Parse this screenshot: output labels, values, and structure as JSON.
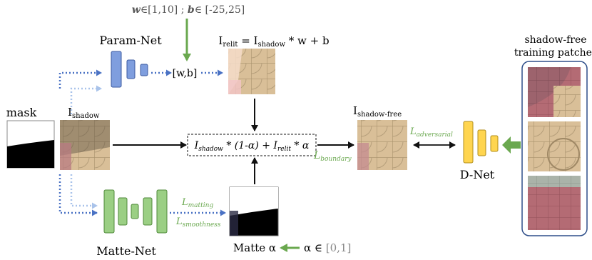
{
  "diagram": {
    "params_range": {
      "w": "w",
      "w_range": "∈[1,10] ; ",
      "b": "b",
      "b_range": "∈ [-25,25]"
    },
    "param_net": "Param-Net",
    "wb": "[w,b]",
    "relit_eq": {
      "I": "I",
      "relit": "relit",
      "eq": " = I",
      "shadow": "shadow",
      "tail": " * w + b"
    },
    "mask": "mask",
    "ishadow": {
      "I": "I",
      "sub": "shadow"
    },
    "composite": {
      "p1": "I",
      "s1": "shadow",
      "p2": " * (1-α) + ",
      "p3": "I",
      "s2": "relit",
      "p4": " * α"
    },
    "l_boundary": {
      "L": "L",
      "sub": "boundary"
    },
    "ishadowfree": {
      "I": "I",
      "sub": "shadow-free"
    },
    "l_adversarial": {
      "L": "L",
      "sub": "adversarial"
    },
    "dnet": "D-Net",
    "patches_title": [
      "shadow-free",
      "training patches"
    ],
    "l_matting": {
      "L": "L",
      "sub": "matting"
    },
    "l_smoothness": {
      "L": "L",
      "sub": "smoothness"
    },
    "matte_net": "Matte-Net",
    "matte_alpha": "Matte α",
    "alpha_range": {
      "a": "α ∈ ",
      "b": "[0,1]"
    },
    "colors": {
      "param_net_fill": "#7f9ede",
      "matte_net_fill": "#9bcf84",
      "dnet_fill": "#ffd54f",
      "green_arrow": "#6aa84f",
      "blue_dotted": "#4a72c4",
      "light_dotted": "#a9c3ea"
    }
  }
}
